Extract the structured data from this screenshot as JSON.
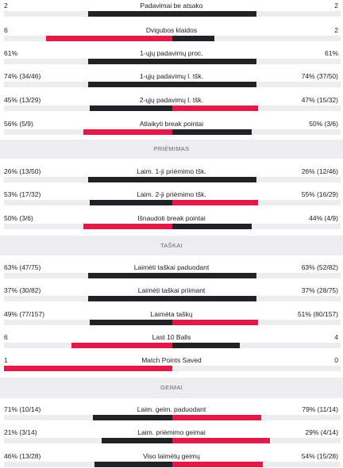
{
  "colors": {
    "dark": "#222226",
    "red": "#e21a48",
    "track": "#ededf0"
  },
  "sections": [
    {
      "title": "PRIĖMIMAS"
    },
    {
      "title": "TAŠKAI"
    },
    {
      "title": "GEIMAI"
    }
  ],
  "rows": [
    {
      "label": "Padavimai be atsako",
      "left": "2",
      "right": "2",
      "lf": 0.5,
      "rf": 0.5,
      "lc": "dark",
      "rc": "dark"
    },
    {
      "label": "Dvigubos klaidos",
      "left": "6",
      "right": "2",
      "lf": 0.75,
      "rf": 0.25,
      "lc": "red",
      "rc": "dark"
    },
    {
      "label": "1-ųjų padavimų proc.",
      "left": "61%",
      "right": "61%",
      "lf": 0.5,
      "rf": 0.5,
      "lc": "dark",
      "rc": "dark"
    },
    {
      "label": "1-ųjų padavimų l. tšk.",
      "left": "74% (34/46)",
      "right": "74% (37/50)",
      "lf": 0.5,
      "rf": 0.5,
      "lc": "dark",
      "rc": "dark"
    },
    {
      "label": "2-ųjų padavimų l. tšk.",
      "left": "45% (13/29)",
      "right": "47% (15/32)",
      "lf": 0.49,
      "rf": 0.51,
      "lc": "dark",
      "rc": "red"
    },
    {
      "label": "Atlaikyti break pointai",
      "left": "56% (5/9)",
      "right": "50% (3/6)",
      "lf": 0.53,
      "rf": 0.47,
      "lc": "red",
      "rc": "dark"
    },
    {
      "label": "Laim. 1-ji priėmimo tšk.",
      "left": "26% (13/50)",
      "right": "26% (12/46)",
      "lf": 0.5,
      "rf": 0.5,
      "lc": "dark",
      "rc": "dark"
    },
    {
      "label": "Laim. 2-ji priėmimo tšk.",
      "left": "53% (17/32)",
      "right": "55% (16/29)",
      "lf": 0.49,
      "rf": 0.51,
      "lc": "dark",
      "rc": "red"
    },
    {
      "label": "Išnaudoti break pointai",
      "left": "50% (3/6)",
      "right": "44% (4/9)",
      "lf": 0.53,
      "rf": 0.47,
      "lc": "red",
      "rc": "dark"
    },
    {
      "label": "Laimėti taškai paduodant",
      "left": "63% (47/75)",
      "right": "63% (52/82)",
      "lf": 0.5,
      "rf": 0.5,
      "lc": "dark",
      "rc": "dark"
    },
    {
      "label": "Laimėti taškai priimant",
      "left": "37% (30/82)",
      "right": "37% (28/75)",
      "lf": 0.5,
      "rf": 0.5,
      "lc": "dark",
      "rc": "dark"
    },
    {
      "label": "Laimėta taškų",
      "left": "49% (77/157)",
      "right": "51% (80/157)",
      "lf": 0.49,
      "rf": 0.51,
      "lc": "dark",
      "rc": "red"
    },
    {
      "label": "Last 10 Balls",
      "left": "6",
      "right": "4",
      "lf": 0.6,
      "rf": 0.4,
      "lc": "red",
      "rc": "dark"
    },
    {
      "label": "Match Points Saved",
      "left": "1",
      "right": "0",
      "lf": 1.0,
      "rf": 0.0,
      "lc": "red",
      "rc": "dark"
    },
    {
      "label": "Laim. geim. paduodant",
      "left": "71% (10/14)",
      "right": "79% (11/14)",
      "lf": 0.47,
      "rf": 0.53,
      "lc": "dark",
      "rc": "red"
    },
    {
      "label": "Laim. priėmimo geimai",
      "left": "21% (3/14)",
      "right": "29% (4/14)",
      "lf": 0.42,
      "rf": 0.58,
      "lc": "dark",
      "rc": "red"
    },
    {
      "label": "Viso laimėtų geimų",
      "left": "46% (13/28)",
      "right": "54% (15/28)",
      "lf": 0.46,
      "rf": 0.54,
      "lc": "dark",
      "rc": "red"
    }
  ]
}
